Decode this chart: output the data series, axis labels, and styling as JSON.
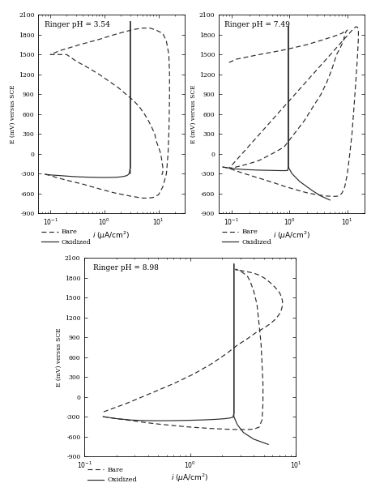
{
  "plots": [
    {
      "title": "Ringer pH = 3.54",
      "xlim": [
        0.06,
        30
      ],
      "ylim": [
        -900,
        2100
      ],
      "bare_i": [
        0.08,
        0.1,
        0.13,
        0.2,
        0.4,
        0.8,
        1.5,
        3.0,
        5.0,
        6.5,
        8.0,
        10.0,
        12.0,
        14.0,
        15.0,
        15.5,
        15.8,
        16.0,
        16.0,
        15.5,
        14.0,
        12.0,
        9.0,
        7.0,
        5.0,
        3.5,
        2.5,
        1.5,
        0.8,
        0.35,
        0.15,
        0.1
      ],
      "bare_E": [
        -310,
        -330,
        -360,
        -400,
        -460,
        -530,
        -590,
        -640,
        -670,
        -670,
        -660,
        -620,
        -500,
        -300,
        0,
        300,
        600,
        900,
        1200,
        1500,
        1700,
        1820,
        1870,
        1900,
        1900,
        1880,
        1850,
        1800,
        1730,
        1650,
        1560,
        1500
      ],
      "bare_ret_i": [
        1500,
        1400,
        1300,
        1200,
        1100,
        1000,
        900,
        800,
        700,
        600,
        500,
        400,
        300,
        200,
        100,
        0,
        -100,
        -200,
        -280,
        -320
      ],
      "bare_ret_i_vals": [
        0.2,
        0.3,
        0.5,
        0.8,
        1.2,
        1.8,
        2.5,
        3.5,
        4.5,
        5.5,
        6.5,
        7.5,
        8.5,
        9.0,
        10.0,
        11.0,
        11.5,
        12.0,
        12.0,
        11.5
      ],
      "ox_i": [
        0.08,
        0.1,
        0.15,
        0.22,
        0.35,
        0.55,
        0.85,
        1.2,
        1.7,
        2.2,
        2.6,
        2.8,
        2.9,
        3.0,
        3.0,
        3.0,
        3.0,
        3.0,
        3.0,
        3.0,
        3.0,
        3.0,
        3.0,
        3.0,
        3.0,
        3.0,
        3.0,
        3.0,
        3.0,
        3.0,
        3.0,
        3.0,
        3.0
      ],
      "ox_E": [
        -310,
        -320,
        -330,
        -340,
        -350,
        -355,
        -358,
        -358,
        -355,
        -345,
        -330,
        -310,
        -280,
        -200,
        0,
        300,
        600,
        900,
        1200,
        1500,
        1700,
        1800,
        1900,
        1950,
        1980,
        2000,
        2000,
        1950,
        1700,
        1400,
        1100,
        800,
        -300
      ]
    },
    {
      "title": "Ringer pH = 7.49",
      "xlim": [
        0.06,
        20
      ],
      "ylim": [
        -900,
        2100
      ],
      "bare_i": [
        0.07,
        0.09,
        0.12,
        0.18,
        0.3,
        0.5,
        0.8,
        1.3,
        2.0,
        3.0,
        4.5,
        6.0,
        7.0,
        8.0,
        9.0,
        10.0,
        11.0,
        12.0,
        13.0,
        14.0,
        15.0,
        15.5,
        15.5,
        15.0,
        14.5,
        14.0,
        13.5,
        13.0
      ],
      "bare_E": [
        -200,
        -220,
        -260,
        -310,
        -370,
        -430,
        -490,
        -545,
        -590,
        -620,
        -640,
        -645,
        -640,
        -600,
        -500,
        -300,
        0,
        300,
        700,
        1100,
        1500,
        1750,
        1880,
        1910,
        1920,
        1920,
        1910,
        1900
      ],
      "bare_ret_i_vals": [
        0.09,
        0.12,
        0.2,
        0.3,
        0.5,
        0.8,
        1.2,
        1.8,
        2.5,
        3.5,
        4.5,
        5.5,
        6.5,
        7.5,
        8.5,
        9.0,
        9.5,
        10.0,
        9.5,
        9.0,
        8.0,
        6.0,
        4.0,
        2.0,
        0.8,
        0.3,
        0.12,
        0.09
      ],
      "bare_ret_i": [
        -220,
        -200,
        -150,
        -100,
        0,
        100,
        300,
        500,
        700,
        900,
        1100,
        1300,
        1500,
        1600,
        1700,
        1800,
        1850,
        1870,
        1860,
        1850,
        1820,
        1780,
        1730,
        1650,
        1570,
        1500,
        1430,
        1380
      ],
      "ox_i": [
        0.07,
        0.09,
        0.12,
        0.18,
        0.3,
        0.5,
        0.7,
        0.85,
        0.93,
        0.95,
        0.95,
        0.95,
        0.95,
        0.95,
        0.95,
        0.95,
        0.95,
        0.95,
        0.95,
        0.95,
        0.95,
        0.95,
        0.95,
        0.95,
        0.95,
        0.95,
        1.1,
        1.5,
        2.5,
        3.5,
        5.0
      ],
      "ox_E": [
        -200,
        -215,
        -230,
        -240,
        -248,
        -252,
        -255,
        -255,
        -252,
        -200,
        0,
        300,
        600,
        900,
        1200,
        1500,
        1700,
        1820,
        1900,
        1920,
        1930,
        1920,
        1700,
        1400,
        1100,
        -200,
        -300,
        -420,
        -560,
        -640,
        -700
      ]
    },
    {
      "title": "Ringer pH = 8.98",
      "xlim": [
        0.1,
        10
      ],
      "ylim": [
        -900,
        2100
      ],
      "bare_i": [
        0.15,
        0.2,
        0.28,
        0.38,
        0.52,
        0.7,
        0.95,
        1.3,
        1.7,
        2.2,
        2.7,
        3.2,
        3.6,
        4.0,
        4.5,
        4.8,
        4.9,
        4.9,
        4.8,
        4.7,
        4.5,
        4.3,
        4.0,
        3.7,
        3.5,
        3.2,
        3.0,
        2.8,
        2.7
      ],
      "bare_E": [
        -300,
        -330,
        -360,
        -390,
        -415,
        -435,
        -455,
        -470,
        -482,
        -490,
        -494,
        -495,
        -493,
        -488,
        -460,
        -350,
        -100,
        200,
        500,
        800,
        1100,
        1400,
        1600,
        1750,
        1820,
        1870,
        1900,
        1920,
        1930
      ],
      "bare_ret_i_vals": [
        2.7,
        3.0,
        3.5,
        4.0,
        4.5,
        5.0,
        5.5,
        6.0,
        6.5,
        7.0,
        7.3,
        7.5,
        7.5,
        7.3,
        7.0,
        6.5,
        5.8,
        5.0,
        4.2,
        3.5,
        2.8,
        2.2,
        1.6,
        1.1,
        0.7,
        0.42,
        0.25,
        0.15
      ],
      "bare_ret_i": [
        1920,
        1910,
        1890,
        1870,
        1840,
        1800,
        1750,
        1700,
        1640,
        1580,
        1520,
        1450,
        1380,
        1310,
        1250,
        1180,
        1110,
        1040,
        970,
        880,
        780,
        650,
        500,
        350,
        200,
        50,
        -100,
        -230
      ],
      "ox_i": [
        0.15,
        0.2,
        0.28,
        0.38,
        0.52,
        0.7,
        0.95,
        1.3,
        1.7,
        2.1,
        2.4,
        2.55,
        2.6,
        2.6,
        2.6,
        2.6,
        2.6,
        2.6,
        2.6,
        2.6,
        2.6,
        2.6,
        2.6,
        2.6,
        2.6,
        2.6,
        2.6,
        2.8,
        3.2,
        4.0,
        5.5
      ],
      "ox_E": [
        -300,
        -330,
        -352,
        -360,
        -362,
        -360,
        -356,
        -350,
        -342,
        -332,
        -320,
        -308,
        -250,
        0,
        300,
        600,
        900,
        1200,
        1500,
        1700,
        1900,
        1980,
        2010,
        2000,
        1800,
        1500,
        -300,
        -420,
        -540,
        -640,
        -720
      ]
    }
  ],
  "ylabel": "E (mV) versus SCE",
  "xlabel": "i (μA/cm²)",
  "legend_bare": "Bare",
  "legend_oxidized": "Oxidized",
  "color": "#2a2a2a",
  "background": "#ffffff",
  "yticks": [
    -900,
    -600,
    -300,
    0,
    300,
    600,
    900,
    1200,
    1500,
    1800,
    2100
  ]
}
